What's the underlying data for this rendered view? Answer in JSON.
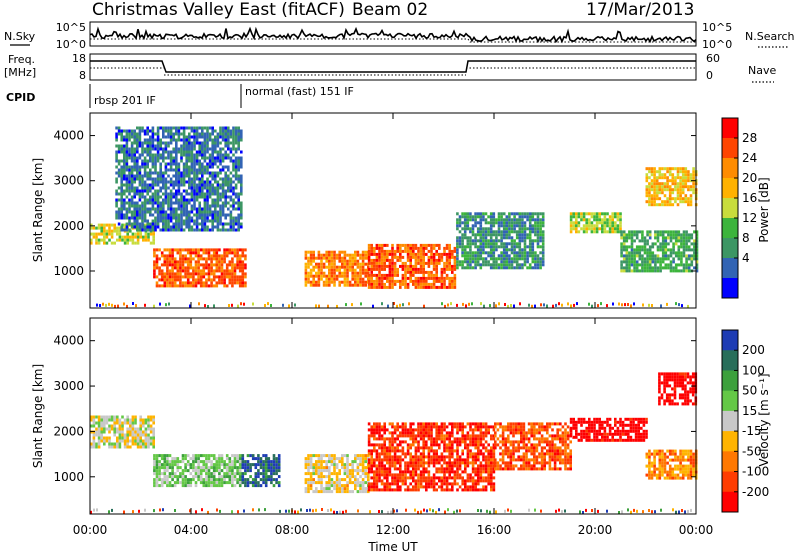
{
  "header": {
    "title": "Christmas Valley East (fitACF)",
    "beam": "Beam 02",
    "date": "17/Mar/2013"
  },
  "strip": {
    "nsky_label": "N.Sky",
    "nsearch_label": "N.Search",
    "left_ticks": [
      "10^5",
      "10^0"
    ],
    "right_ticks": [
      "10^5",
      "10^0"
    ],
    "freq_label_1": "Freq.",
    "freq_label_2": "[MHz]",
    "freq_ticks": [
      "18",
      "8"
    ],
    "nave_label": "Nave",
    "nave_ticks": [
      "60",
      "0"
    ],
    "cpid_label": "CPID",
    "cpid_1": "rbsp 201 IF",
    "cpid_2": "normal (fast) 151 IF"
  },
  "panels": {
    "power": {
      "ylabel": "Slant Range [km]",
      "cbar_label": "Power [dB]",
      "cbar_ticks": [
        "28",
        "24",
        "20",
        "16",
        "12",
        "8",
        "4"
      ],
      "cbar_colors": [
        "#ff0000",
        "#ff4500",
        "#ff8c00",
        "#ffb200",
        "#c8dc3c",
        "#3cb43c",
        "#3c9664",
        "#3264b4",
        "#0000ff"
      ]
    },
    "velocity": {
      "ylabel": "Slant Range [km]",
      "cbar_label": "Velocity [m s⁻¹]",
      "cbar_ticks": [
        "200",
        "100",
        "50",
        "15",
        "-15",
        "-50",
        "-100",
        "-200"
      ],
      "cbar_colors": [
        "#1e3cb4",
        "#286e5a",
        "#3ca03c",
        "#64c846",
        "#c8c8c8",
        "#ffb400",
        "#ff7800",
        "#ff3c00",
        "#ff0000"
      ]
    }
  },
  "xaxis": {
    "label": "Time UT",
    "ticks": [
      "00:00",
      "04:00",
      "08:00",
      "12:00",
      "16:00",
      "20:00",
      "00:00"
    ]
  },
  "chart_data": [
    {
      "type": "heatmap",
      "panel": "power",
      "xlabel": "Time UT",
      "ylabel": "Slant Range [km]",
      "xlim_hours": [
        0,
        24
      ],
      "ylim_km": [
        180,
        4500
      ],
      "yticks_km": [
        1000,
        2000,
        3000,
        4000
      ],
      "color_scale": "Power [dB]",
      "clim": [
        0,
        30
      ],
      "regions": [
        {
          "t": [
            0.0,
            2.5
          ],
          "r": [
            1650,
            2050
          ],
          "value": 16
        },
        {
          "t": [
            2.5,
            6.2
          ],
          "r": [
            650,
            1500
          ],
          "value": 24
        },
        {
          "t": [
            1.0,
            6.0
          ],
          "r": [
            1900,
            4200
          ],
          "value": 6
        },
        {
          "t": [
            8.5,
            11.0
          ],
          "r": [
            700,
            1450
          ],
          "value": 22
        },
        {
          "t": [
            11.0,
            14.5
          ],
          "r": [
            650,
            1600
          ],
          "value": 24
        },
        {
          "t": [
            14.5,
            18.0
          ],
          "r": [
            1100,
            2300
          ],
          "value": 8
        },
        {
          "t": [
            19.0,
            21.0
          ],
          "r": [
            1900,
            2300
          ],
          "value": 14
        },
        {
          "t": [
            21.0,
            24.0
          ],
          "r": [
            1000,
            1900
          ],
          "value": 10
        },
        {
          "t": [
            22.0,
            24.0
          ],
          "r": [
            2500,
            3300
          ],
          "value": 18
        }
      ]
    },
    {
      "type": "heatmap",
      "panel": "velocity",
      "xlabel": "Time UT",
      "ylabel": "Slant Range [km]",
      "xlim_hours": [
        0,
        24
      ],
      "ylim_km": [
        180,
        4500
      ],
      "yticks_km": [
        1000,
        2000,
        3000,
        4000
      ],
      "color_scale": "Velocity [m s⁻¹]",
      "clim": [
        -200,
        200
      ],
      "regions": [
        {
          "t": [
            0.0,
            2.5
          ],
          "r": [
            1650,
            2350
          ],
          "value": 0
        },
        {
          "t": [
            2.5,
            6.0
          ],
          "r": [
            800,
            1500
          ],
          "value": 40
        },
        {
          "t": [
            6.0,
            7.5
          ],
          "r": [
            800,
            1500
          ],
          "value": 150
        },
        {
          "t": [
            8.5,
            11.0
          ],
          "r": [
            700,
            1500
          ],
          "value": -20
        },
        {
          "t": [
            11.0,
            16.0
          ],
          "r": [
            700,
            2200
          ],
          "value": -150
        },
        {
          "t": [
            16.0,
            19.0
          ],
          "r": [
            1200,
            2200
          ],
          "value": -120
        },
        {
          "t": [
            19.0,
            22.0
          ],
          "r": [
            1800,
            2300
          ],
          "value": -200
        },
        {
          "t": [
            22.0,
            24.0
          ],
          "r": [
            1000,
            1600
          ],
          "value": -80
        },
        {
          "t": [
            22.5,
            24.0
          ],
          "r": [
            2600,
            3300
          ],
          "value": -200
        }
      ]
    }
  ]
}
